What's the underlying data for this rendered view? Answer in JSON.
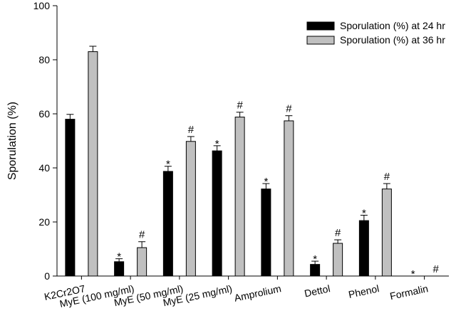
{
  "chart_data": {
    "type": "bar",
    "title": "",
    "xlabel": "",
    "ylabel": "Sporulation (%)",
    "ylim": [
      0,
      100
    ],
    "yticks": [
      0,
      20,
      40,
      60,
      80,
      100
    ],
    "grid": false,
    "legend_position": "top-right",
    "categories": [
      "K2Cr2O7",
      "MyE (100 mg/ml)",
      "MyE (50 mg/ml)",
      "MyE (25 mg/ml)",
      "Amprolium",
      "Dettol",
      "Phenol",
      "Formalin"
    ],
    "series": [
      {
        "name": "Sporulation (%) at 24 hr",
        "color": "#000000",
        "values": [
          58,
          5.3,
          38.7,
          46.3,
          32.2,
          4.3,
          20.5,
          0
        ],
        "errors": [
          1.8,
          1.1,
          1.9,
          1.9,
          2.0,
          1.2,
          2.0,
          0
        ],
        "annotations": [
          "",
          "*",
          "*",
          "*",
          "*",
          "*",
          "*",
          "*"
        ]
      },
      {
        "name": "Sporulation (%) at 36 hr",
        "color": "#c0c0c0",
        "values": [
          83,
          10.5,
          49.8,
          58.8,
          57.4,
          12.1,
          32.2,
          0
        ],
        "errors": [
          2.0,
          2.2,
          1.8,
          1.8,
          1.9,
          1.3,
          2.0,
          0
        ],
        "annotations": [
          "",
          "#",
          "#",
          "#",
          "#",
          "#",
          "#",
          "#"
        ]
      }
    ]
  }
}
